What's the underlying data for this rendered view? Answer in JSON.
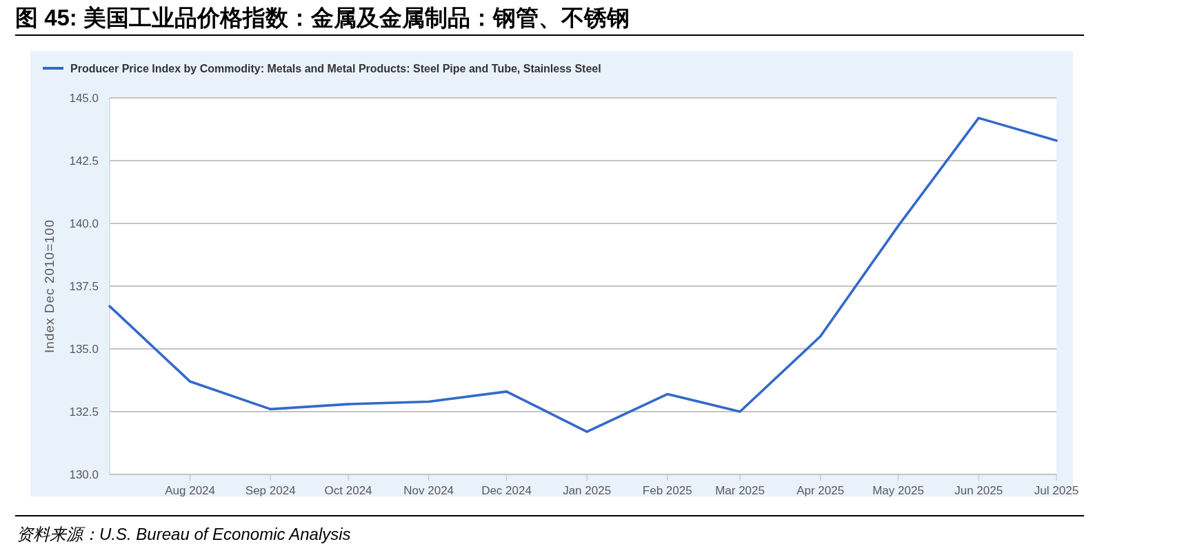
{
  "chart_data": {
    "type": "line",
    "title": "图 45: 美国工业品价格指数：金属及金属制品：钢管、不锈钢",
    "ylabel": "Index Dec 2010=100",
    "annotations": [
      "资料来源：U.S. Bureau of Economic Analysis"
    ],
    "x": [
      "2024-07",
      "2024-08",
      "2024-09",
      "2024-10",
      "2024-11",
      "2024-12",
      "2025-01",
      "2025-02",
      "2025-03",
      "2025-04",
      "2025-05",
      "2025-06",
      "2025-07"
    ],
    "series": [
      {
        "name": "Producer Price Index by Commodity: Metals and Metal Products: Steel Pipe and Tube, Stainless Steel",
        "color": "#3369c9",
        "values": [
          136.7,
          133.7,
          132.6,
          132.8,
          132.9,
          133.3,
          131.7,
          133.2,
          132.5,
          135.5,
          139.9,
          144.2,
          143.3
        ]
      }
    ],
    "xlim": [
      "2024-07",
      "2025-07"
    ],
    "xticks": [
      {
        "value": "2024-08",
        "label": "Aug 2024"
      },
      {
        "value": "2024-09",
        "label": "Sep 2024"
      },
      {
        "value": "2024-10",
        "label": "Oct 2024"
      },
      {
        "value": "2024-11",
        "label": "Nov 2024"
      },
      {
        "value": "2024-12",
        "label": "Dec 2024"
      },
      {
        "value": "2025-01",
        "label": "Jan 2025"
      },
      {
        "value": "2025-02",
        "label": "Feb 2025"
      },
      {
        "value": "2025-03",
        "label": "Mar 2025"
      },
      {
        "value": "2025-04",
        "label": "Apr 2025"
      },
      {
        "value": "2025-05",
        "label": "May 2025"
      },
      {
        "value": "2025-06",
        "label": "Jun 2025"
      },
      {
        "value": "2025-07",
        "label": "Jul 2025"
      }
    ],
    "ylim": [
      130,
      145
    ],
    "yticks": [
      {
        "value": 130,
        "label": "130.0"
      },
      {
        "value": 132.5,
        "label": "132.5"
      },
      {
        "value": 135,
        "label": "135.0"
      },
      {
        "value": 137.5,
        "label": "137.5"
      },
      {
        "value": 140,
        "label": "140.0"
      },
      {
        "value": 142.5,
        "label": "142.5"
      },
      {
        "value": 145,
        "label": "145.0"
      }
    ],
    "grid": "y",
    "legend": "top left",
    "marker": "none",
    "line_style": "solid"
  }
}
